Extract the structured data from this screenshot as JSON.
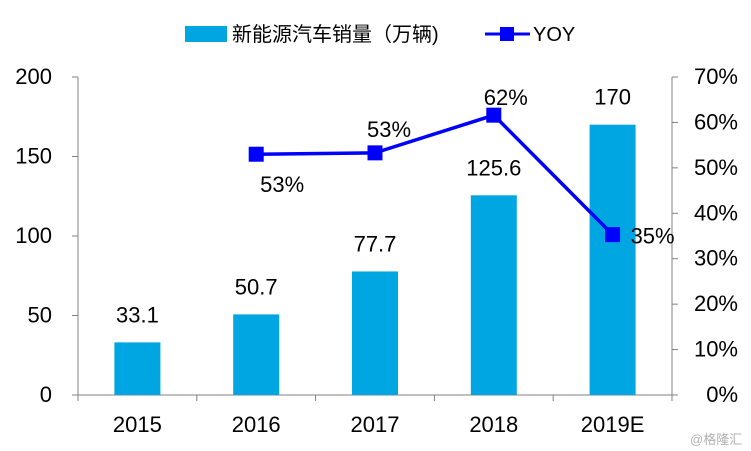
{
  "chart_data": {
    "type": "bar",
    "categories": [
      "2015",
      "2016",
      "2017",
      "2018",
      "2019E"
    ],
    "series": [
      {
        "name": "新能源汽车销量（万辆)",
        "kind": "bar",
        "axis": "left",
        "color": "#00A6E2",
        "values": [
          33.1,
          50.7,
          77.7,
          125.6,
          170
        ],
        "labels": [
          "33.1",
          "50.7",
          "77.7",
          "125.6",
          "170"
        ]
      },
      {
        "name": "YOY",
        "kind": "line",
        "axis": "right",
        "color": "#0000FF",
        "marker": "square",
        "values": [
          null,
          53,
          53.3,
          61.6,
          35.3
        ],
        "labels": [
          "",
          "53%",
          "53%",
          "62%",
          "35%"
        ]
      }
    ],
    "ylim": [
      0,
      200
    ],
    "y2lim": [
      0,
      70
    ],
    "yticks": [
      "0",
      "50",
      "100",
      "150",
      "200"
    ],
    "y2ticks": [
      "0%",
      "10%",
      "20%",
      "30%",
      "40%",
      "50%",
      "60%",
      "70%"
    ],
    "legend_position": "top",
    "grid": false
  },
  "watermark": "@格隆汇"
}
